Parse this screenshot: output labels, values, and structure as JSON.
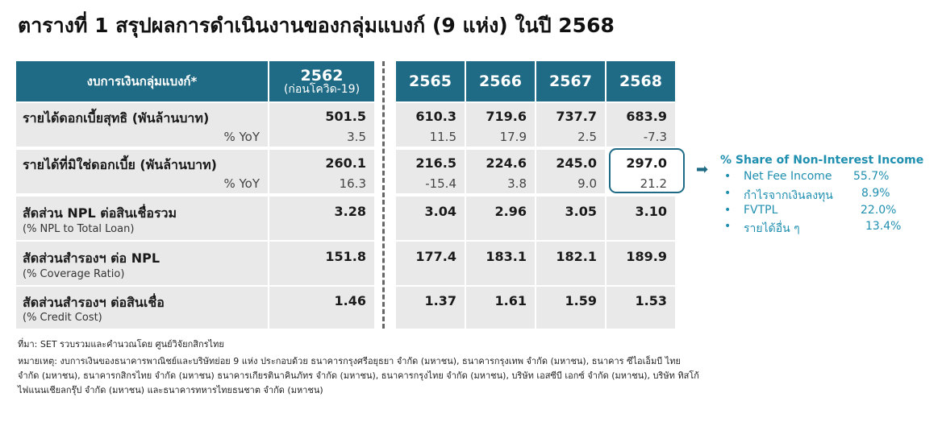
{
  "title": "ตารางที่ 1 สรุปผลการดำเนินงานของกลุ่มแบงก์ (9 แห่ง) ในปี 2568",
  "header": {
    "label": "งบการเงินกลุ่มแบงก์*",
    "y2562": "2562",
    "y2562_note": "(ก่อนโควิด-19)",
    "y2565": "2565",
    "y2566": "2566",
    "y2567": "2567",
    "y2568": "2568"
  },
  "rows": [
    {
      "label": "รายได้ดอกเบี้ยสุทธิ (พันล้านบาท)",
      "sub": "% YoY",
      "v2562": "501.5",
      "s2562": "3.5",
      "v2565": "610.3",
      "s2565": "11.5",
      "v2566": "719.6",
      "s2566": "17.9",
      "v2567": "737.7",
      "s2567": "2.5",
      "v2568": "683.9",
      "s2568": "-7.3"
    },
    {
      "label": "รายได้ที่มิใช่ดอกเบี้ย (พันล้านบาท)",
      "sub": "% YoY",
      "v2562": "260.1",
      "s2562": "16.3",
      "v2565": "216.5",
      "s2565": "-15.4",
      "v2566": "224.6",
      "s2566": "3.8",
      "v2567": "245.0",
      "s2567": "9.0",
      "v2568": "297.0",
      "s2568": "21.2"
    },
    {
      "label": "สัดส่วน NPL ต่อสินเชื่อรวม",
      "sub": "(% NPL to Total Loan)",
      "v2562": "3.28",
      "v2565": "3.04",
      "v2566": "2.96",
      "v2567": "3.05",
      "v2568": "3.10"
    },
    {
      "label": "สัดส่วนสำรองฯ ต่อ NPL",
      "sub": "(% Coverage Ratio)",
      "v2562": "151.8",
      "v2565": "177.4",
      "v2566": "183.1",
      "v2567": "182.1",
      "v2568": "189.9"
    },
    {
      "label": "สัดส่วนสำรองฯ ต่อสินเชื่อ",
      "sub": "(% Credit Cost)",
      "v2562": "1.46",
      "v2565": "1.37",
      "v2566": "1.61",
      "v2567": "1.59",
      "v2568": "1.53"
    }
  ],
  "share": {
    "title": "% Share of Non-Interest Income",
    "items": [
      {
        "label": "Net Fee Income",
        "value": "55.7%"
      },
      {
        "label": "กำไรจากเงินลงทุน",
        "value": "8.9%"
      },
      {
        "label": "FVTPL",
        "value": "22.0%"
      },
      {
        "label": "รายได้อื่น ๆ",
        "value": "13.4%"
      }
    ],
    "bullet": "•"
  },
  "colors": {
    "header": "#1f6b85",
    "accent": "#1f8fb0",
    "cell": "#e9e9ea"
  },
  "icons": {
    "arrow": "arrow-right-icon"
  },
  "footnotes": {
    "source": "ที่มา: SET รวบรวมและคำนวณโดย ศูนย์วิจัยกสิกรไทย",
    "note1": "หมายเหตุ: งบการเงินของธนาคารพาณิชย์และบริษัทย่อย 9 แห่ง ประกอบด้วย ธนาคารกรุงศรีอยุธยา จำกัด (มหาชน), ธนาคารกรุงเทพ จำกัด (มหาชน), ธนาคาร ซีไอเอ็มบี ไทย",
    "note2": "จำกัด (มหาชน), ธนาคารกสิกรไทย จำกัด (มหาชน) ธนาคารเกียรตินาคินภัทร จำกัด (มหาชน), ธนาคารกรุงไทย จำกัด (มหาชน), บริษัท เอสซีบี เอกซ์ จำกัด (มหาชน), บริษัท ทิสโก้",
    "note3": "ไฟแนนเชียลกรุ๊ป จำกัด (มหาชน) และธนาคารทหารไทยธนชาต จำกัด (มหาชน)"
  }
}
